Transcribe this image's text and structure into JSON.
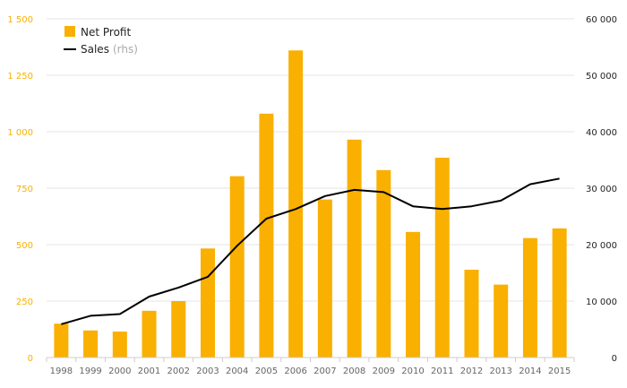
{
  "chart_data": {
    "type": "bar",
    "categories": [
      "1998",
      "1999",
      "2000",
      "2001",
      "2002",
      "2003",
      "2004",
      "2005",
      "2006",
      "2007",
      "2008",
      "2009",
      "2010",
      "2011",
      "2012",
      "2013",
      "2014",
      "2015"
    ],
    "series": [
      {
        "name": "Net Profit",
        "type": "bar",
        "axis": "left",
        "color": "#F9B000",
        "values": [
          150,
          120,
          115,
          207,
          250,
          483,
          803,
          1080,
          1360,
          700,
          965,
          830,
          556,
          885,
          389,
          323,
          529,
          572
        ]
      },
      {
        "name": "Sales",
        "name_suffix": "(rhs)",
        "type": "line",
        "axis": "right",
        "color": "#000000",
        "values": [
          5900,
          7400,
          7700,
          10800,
          12400,
          14300,
          19800,
          24600,
          26300,
          28600,
          29700,
          29300,
          26800,
          26300,
          26800,
          27800,
          30700,
          31700
        ]
      }
    ],
    "y_left": {
      "min": 0,
      "max": 1500,
      "ticks": [
        0,
        250,
        500,
        750,
        1000,
        1250,
        1500
      ],
      "tick_labels": [
        "0",
        "250",
        "500",
        "750",
        "1 000",
        "1 250",
        "1 500"
      ],
      "color": "#F9B000"
    },
    "y_right": {
      "min": 0,
      "max": 60000,
      "ticks": [
        0,
        10000,
        20000,
        30000,
        40000,
        50000,
        60000
      ],
      "tick_labels": [
        "0",
        "10 000",
        "20 000",
        "30 000",
        "40 000",
        "50 000",
        "60 000"
      ],
      "color": "#222222"
    },
    "grid": true,
    "legend_position": "top-left"
  }
}
